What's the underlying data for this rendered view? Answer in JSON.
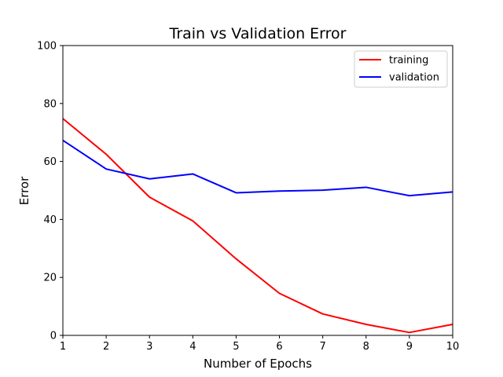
{
  "chart_data": {
    "type": "line",
    "title": "Train vs Validation Error",
    "xlabel": "Number of Epochs",
    "ylabel": "Error",
    "xlim": [
      1,
      10
    ],
    "ylim": [
      0,
      100
    ],
    "x_ticks": [
      "1",
      "2",
      "3",
      "4",
      "5",
      "6",
      "7",
      "8",
      "9",
      "10"
    ],
    "y_ticks": [
      "0",
      "20",
      "40",
      "60",
      "80",
      "100"
    ],
    "x": [
      1,
      2,
      3,
      4,
      5,
      6,
      7,
      8,
      9,
      10
    ],
    "grid": false,
    "legend_position": "upper right",
    "series": [
      {
        "name": "training",
        "color": "#ff0000",
        "values": [
          74.8,
          62.5,
          47.7,
          39.5,
          26.4,
          14.5,
          7.4,
          3.8,
          1.0,
          3.8
        ]
      },
      {
        "name": "validation",
        "color": "#0000ff",
        "values": [
          67.3,
          57.4,
          54.0,
          55.7,
          49.2,
          49.8,
          50.1,
          51.1,
          48.2,
          49.5
        ]
      }
    ]
  }
}
